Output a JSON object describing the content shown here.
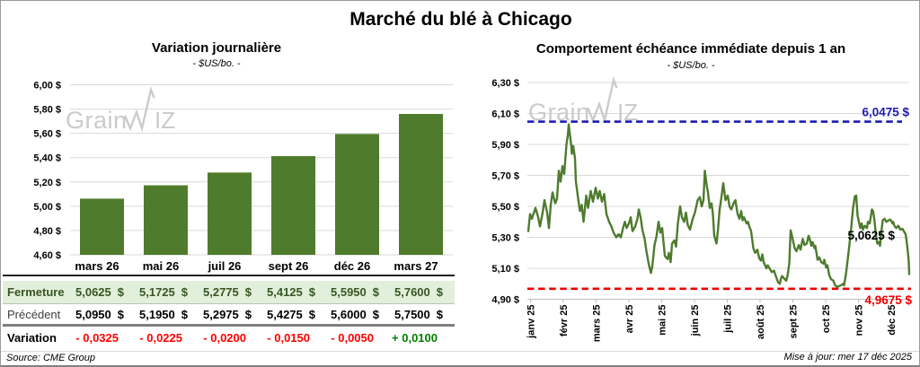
{
  "page": {
    "title": "Marché du blé à Chicago",
    "source_note": "Source: CME Group",
    "updated_note": "Mise à jour: mer 17 déc 2025",
    "watermark": {
      "part1": "Grain",
      "part2": "IZ",
      "color": "#cbcbcb"
    }
  },
  "colors": {
    "green_series": "#4e7b2e",
    "grid": "#d9d9d9",
    "axis": "#bfbfbf",
    "high_line_blue": "#1c1cb4",
    "low_line_red": "#ee0000",
    "fermeture_bg": "#e2efda",
    "fermeture_text": "#375623",
    "negative_red": "#ff0000",
    "positive_green": "#008000"
  },
  "chart_data": [
    {
      "type": "bar",
      "title": "Variation journalière",
      "subtitle": "- $US/bo. -",
      "categories": [
        "mars 26",
        "mai 26",
        "juil 26",
        "sept 26",
        "déc 26",
        "mars 27"
      ],
      "values": [
        5.0625,
        5.1725,
        5.2775,
        5.4125,
        5.595,
        5.76
      ],
      "ylim": [
        4.6,
        6.0
      ],
      "ytick_step": 0.2,
      "ytick_labels": [
        "6,00 $",
        "5,80 $",
        "5,60 $",
        "5,40 $",
        "5,20 $",
        "5,00 $",
        "4,80 $",
        "4,60 $"
      ],
      "grid": true,
      "bar_color": "#4e7c2c"
    },
    {
      "type": "line",
      "title": "Comportement échéance immédiate depuis 1 an",
      "subtitle": "- $US/bo. -",
      "x_categories": [
        "janv 25",
        "févr 25",
        "mars 25",
        "avr 25",
        "mai 25",
        "juin 25",
        "juil 25",
        "août 25",
        "sept 25",
        "oct 25",
        "nov 25",
        "déc 25"
      ],
      "ylim": [
        4.9,
        6.3
      ],
      "ytick_step": 0.2,
      "ytick_labels": [
        "6,30 $",
        "6,10 $",
        "5,90 $",
        "5,70 $",
        "5,50 $",
        "5,30 $",
        "5,10 $",
        "4,90 $"
      ],
      "grid": true,
      "line_color": "#4e7b2e",
      "high_line": {
        "value": 6.0475,
        "label": "6,0475 $",
        "color": "#1c1cb4"
      },
      "low_line": {
        "value": 4.9675,
        "label": "4,9675 $",
        "color": "#ee0000"
      },
      "last_point_label": {
        "value": 5.0625,
        "label": "5,0625 $",
        "color": "#000000"
      },
      "series": [
        {
          "name": "échéance immédiate",
          "points": [
            [
              0.0024,
              5.34
            ],
            [
              0.0071,
              5.45
            ],
            [
              0.0118,
              5.42
            ],
            [
              0.0212,
              5.49
            ],
            [
              0.0282,
              5.43
            ],
            [
              0.0329,
              5.37
            ],
            [
              0.04,
              5.46
            ],
            [
              0.0447,
              5.54
            ],
            [
              0.0518,
              5.46
            ],
            [
              0.0565,
              5.36
            ],
            [
              0.0612,
              5.51
            ],
            [
              0.0659,
              5.59
            ],
            [
              0.0729,
              5.52
            ],
            [
              0.0776,
              5.55
            ],
            [
              0.0824,
              5.73
            ],
            [
              0.0871,
              5.66
            ],
            [
              0.0918,
              5.76
            ],
            [
              0.0965,
              5.71
            ],
            [
              0.1024,
              5.9
            ],
            [
              0.1059,
              5.96
            ],
            [
              0.1082,
              6.03
            ],
            [
              0.1106,
              5.98
            ],
            [
              0.1141,
              5.91
            ],
            [
              0.1165,
              5.84
            ],
            [
              0.12,
              5.89
            ],
            [
              0.1247,
              5.81
            ],
            [
              0.1271,
              5.66
            ],
            [
              0.1329,
              5.55
            ],
            [
              0.1376,
              5.47
            ],
            [
              0.1424,
              5.51
            ],
            [
              0.1471,
              5.4
            ],
            [
              0.1541,
              5.57
            ],
            [
              0.1588,
              5.49
            ],
            [
              0.1659,
              5.6
            ],
            [
              0.1718,
              5.53
            ],
            [
              0.1788,
              5.62
            ],
            [
              0.1847,
              5.55
            ],
            [
              0.1894,
              5.6
            ],
            [
              0.1953,
              5.53
            ],
            [
              0.2012,
              5.58
            ],
            [
              0.2071,
              5.45
            ],
            [
              0.2141,
              5.4
            ],
            [
              0.22,
              5.37
            ],
            [
              0.2259,
              5.33
            ],
            [
              0.2329,
              5.3
            ],
            [
              0.2388,
              5.32
            ],
            [
              0.2447,
              5.3
            ],
            [
              0.2506,
              5.36
            ],
            [
              0.2553,
              5.4
            ],
            [
              0.26,
              5.36
            ],
            [
              0.2659,
              5.39
            ],
            [
              0.2706,
              5.43
            ],
            [
              0.2753,
              5.34
            ],
            [
              0.2824,
              5.37
            ],
            [
              0.2882,
              5.42
            ],
            [
              0.2918,
              5.48
            ],
            [
              0.2965,
              5.43
            ],
            [
              0.3012,
              5.35
            ],
            [
              0.3071,
              5.29
            ],
            [
              0.3118,
              5.21
            ],
            [
              0.3176,
              5.13
            ],
            [
              0.3235,
              5.07
            ],
            [
              0.3271,
              5.11
            ],
            [
              0.3329,
              5.25
            ],
            [
              0.3376,
              5.3
            ],
            [
              0.3435,
              5.4
            ],
            [
              0.3482,
              5.33
            ],
            [
              0.3529,
              5.36
            ],
            [
              0.36,
              5.18
            ],
            [
              0.3671,
              5.16
            ],
            [
              0.3706,
              5.2
            ],
            [
              0.3753,
              5.14
            ],
            [
              0.3788,
              5.26
            ],
            [
              0.3847,
              5.28
            ],
            [
              0.3894,
              5.24
            ],
            [
              0.3941,
              5.39
            ],
            [
              0.4,
              5.5
            ],
            [
              0.4047,
              5.43
            ],
            [
              0.4106,
              5.4
            ],
            [
              0.4153,
              5.46
            ],
            [
              0.42,
              5.38
            ],
            [
              0.4259,
              5.35
            ],
            [
              0.4329,
              5.42
            ],
            [
              0.4388,
              5.46
            ],
            [
              0.4459,
              5.54
            ],
            [
              0.4518,
              5.56
            ],
            [
              0.4565,
              5.5
            ],
            [
              0.4612,
              5.54
            ],
            [
              0.4647,
              5.73
            ],
            [
              0.4694,
              5.64
            ],
            [
              0.4729,
              5.59
            ],
            [
              0.4776,
              5.49
            ],
            [
              0.4824,
              5.52
            ],
            [
              0.4859,
              5.45
            ],
            [
              0.4894,
              5.31
            ],
            [
              0.4953,
              5.26
            ],
            [
              0.4988,
              5.34
            ],
            [
              0.5035,
              5.48
            ],
            [
              0.5082,
              5.56
            ],
            [
              0.5129,
              5.65
            ],
            [
              0.5188,
              5.54
            ],
            [
              0.5247,
              5.57
            ],
            [
              0.5294,
              5.5
            ],
            [
              0.5341,
              5.48
            ],
            [
              0.54,
              5.52
            ],
            [
              0.5447,
              5.54
            ],
            [
              0.5506,
              5.45
            ],
            [
              0.5553,
              5.42
            ],
            [
              0.56,
              5.47
            ],
            [
              0.5635,
              5.41
            ],
            [
              0.5671,
              5.43
            ],
            [
              0.5741,
              5.39
            ],
            [
              0.5776,
              5.4
            ],
            [
              0.5812,
              5.37
            ],
            [
              0.5859,
              5.34
            ],
            [
              0.5918,
              5.23
            ],
            [
              0.5965,
              5.2
            ],
            [
              0.6024,
              5.22
            ],
            [
              0.6071,
              5.165
            ],
            [
              0.6118,
              5.15
            ],
            [
              0.6153,
              5.19
            ],
            [
              0.6188,
              5.14
            ],
            [
              0.6259,
              5.1
            ],
            [
              0.6294,
              5.12
            ],
            [
              0.6365,
              5.09
            ],
            [
              0.64,
              5.075
            ],
            [
              0.6459,
              5.085
            ],
            [
              0.6506,
              5.05
            ],
            [
              0.6565,
              5.01
            ],
            [
              0.6612,
              5.0
            ],
            [
              0.6635,
              5.03
            ],
            [
              0.6671,
              5.05
            ],
            [
              0.6706,
              5.04
            ],
            [
              0.6776,
              5.02
            ],
            [
              0.6812,
              5.05
            ],
            [
              0.6859,
              5.13
            ],
            [
              0.6894,
              5.345
            ],
            [
              0.6929,
              5.31
            ],
            [
              0.6965,
              5.27
            ],
            [
              0.7,
              5.23
            ],
            [
              0.7047,
              5.21
            ],
            [
              0.7106,
              5.25
            ],
            [
              0.7153,
              5.22
            ],
            [
              0.7212,
              5.29
            ],
            [
              0.7259,
              5.25
            ],
            [
              0.7318,
              5.26
            ],
            [
              0.7365,
              5.31
            ],
            [
              0.74,
              5.285
            ],
            [
              0.7435,
              5.245
            ],
            [
              0.7471,
              5.27
            ],
            [
              0.7518,
              5.23
            ],
            [
              0.7541,
              5.245
            ],
            [
              0.76,
              5.155
            ],
            [
              0.7647,
              5.17
            ],
            [
              0.7694,
              5.14
            ],
            [
              0.7753,
              5.13
            ],
            [
              0.7776,
              5.155
            ],
            [
              0.7824,
              5.105
            ],
            [
              0.7859,
              5.12
            ],
            [
              0.7906,
              5.055
            ],
            [
              0.7953,
              5.03
            ],
            [
              0.8012,
              5.02
            ],
            [
              0.8059,
              4.99
            ],
            [
              0.8118,
              4.98
            ],
            [
              0.8165,
              4.985
            ],
            [
              0.8212,
              4.99
            ],
            [
              0.8271,
              5.0
            ],
            [
              0.8294,
              4.99
            ],
            [
              0.8341,
              5.06
            ],
            [
              0.8376,
              5.13
            ],
            [
              0.84,
              5.18
            ],
            [
              0.8424,
              5.23
            ],
            [
              0.8471,
              5.335
            ],
            [
              0.8529,
              5.49
            ],
            [
              0.8576,
              5.565
            ],
            [
              0.8612,
              5.57
            ],
            [
              0.8647,
              5.44
            ],
            [
              0.8682,
              5.4
            ],
            [
              0.8718,
              5.36
            ],
            [
              0.8753,
              5.39
            ],
            [
              0.8788,
              5.35
            ],
            [
              0.8835,
              5.375
            ],
            [
              0.8894,
              5.36
            ],
            [
              0.8918,
              5.4
            ],
            [
              0.8965,
              5.39
            ],
            [
              0.9024,
              5.48
            ],
            [
              0.9059,
              5.465
            ],
            [
              0.9094,
              5.4
            ],
            [
              0.9129,
              5.31
            ],
            [
              0.9165,
              5.26
            ],
            [
              0.92,
              5.27
            ],
            [
              0.9235,
              5.245
            ],
            [
              0.9271,
              5.335
            ],
            [
              0.9306,
              5.41
            ],
            [
              0.9353,
              5.42
            ],
            [
              0.94,
              5.4
            ],
            [
              0.9459,
              5.41
            ],
            [
              0.9506,
              5.415
            ],
            [
              0.9565,
              5.39
            ],
            [
              0.9576,
              5.4
            ],
            [
              0.9612,
              5.375
            ],
            [
              0.9659,
              5.36
            ],
            [
              0.9718,
              5.375
            ],
            [
              0.9765,
              5.35
            ],
            [
              0.9824,
              5.355
            ],
            [
              0.9871,
              5.335
            ],
            [
              0.9906,
              5.32
            ],
            [
              0.9929,
              5.28
            ],
            [
              0.9965,
              5.205
            ],
            [
              0.9988,
              5.14
            ],
            [
              1.0,
              5.0625
            ]
          ]
        }
      ]
    }
  ],
  "table": {
    "columns": [
      "mars 26",
      "mai 26",
      "juil 26",
      "sept 26",
      "déc 26",
      "mars 27"
    ],
    "currency": "$",
    "rows": [
      {
        "label": "Fermeture",
        "kind": "fermeture",
        "values": [
          "5,0625",
          "5,1725",
          "5,2775",
          "5,4125",
          "5,5950",
          "5,7600"
        ],
        "currency": true
      },
      {
        "label": "Précédent",
        "kind": "precedent",
        "values": [
          "5,0950",
          "5,1950",
          "5,2975",
          "5,4275",
          "5,6000",
          "5,7500"
        ],
        "currency": true
      },
      {
        "label": "Variation",
        "kind": "variation",
        "values": [
          "- 0,0325",
          "- 0,0225",
          "- 0,0200",
          "- 0,0150",
          "- 0,0050",
          "+ 0,0100"
        ],
        "value_colors": [
          "neg",
          "neg",
          "neg",
          "neg",
          "neg",
          "pos"
        ],
        "currency": false
      }
    ]
  }
}
